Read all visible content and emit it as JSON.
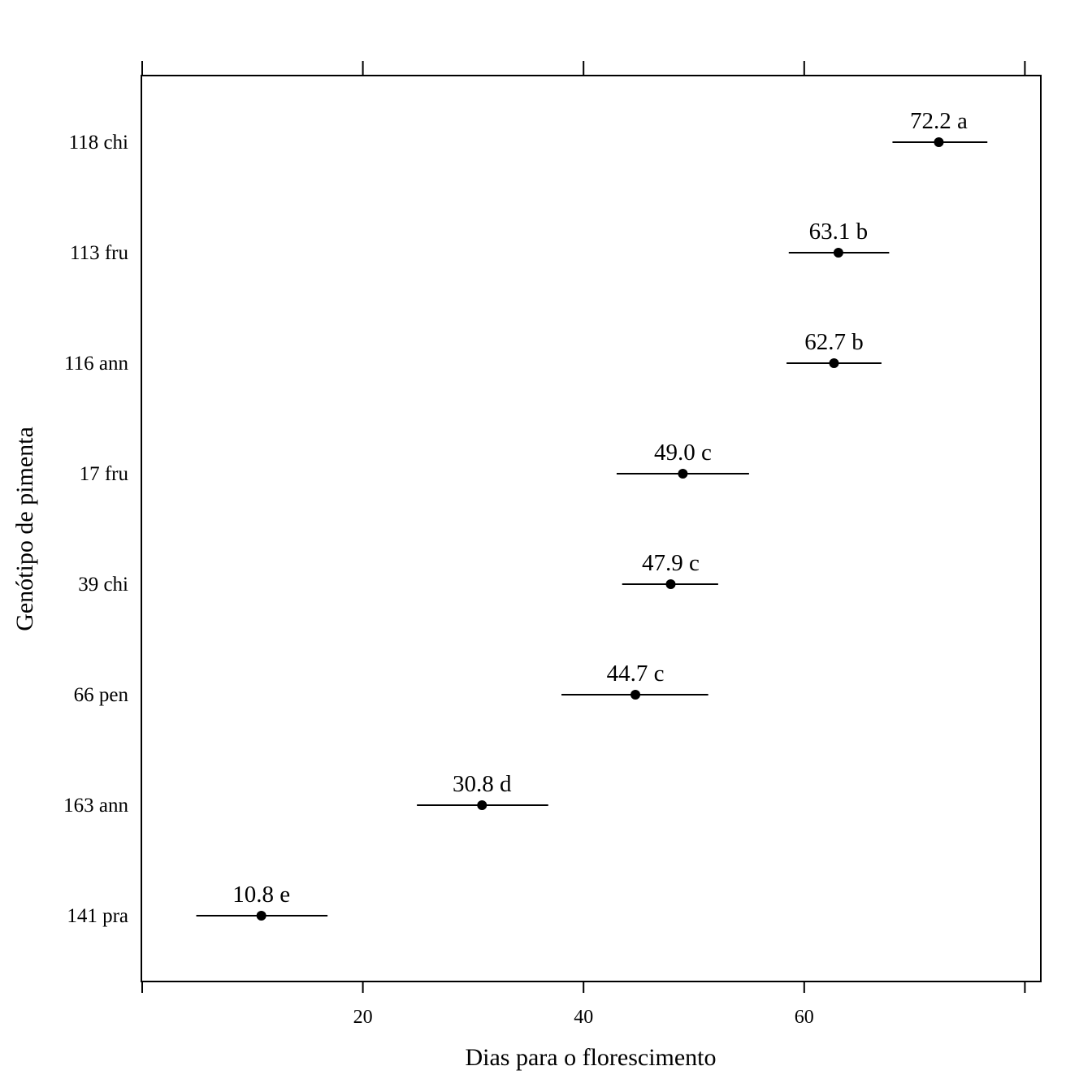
{
  "chart_data": {
    "type": "dotplot-errorbar",
    "xlabel": "Dias para o florescimento",
    "ylabel": "Genótipo de pimenta",
    "xlim": [
      0,
      80
    ],
    "xticks": [
      20,
      40,
      60
    ],
    "xtick_positions": [
      0,
      20,
      40,
      60,
      80
    ],
    "grid": false,
    "categories": [
      "118 chi",
      "113 fru",
      "116 ann",
      "17 fru",
      "39 chi",
      "66 pen",
      "163 ann",
      "141 pra"
    ],
    "values": [
      72.2,
      63.1,
      62.7,
      49.0,
      47.9,
      44.7,
      30.8,
      10.8
    ],
    "ci_lower": [
      68.0,
      58.6,
      58.4,
      43.0,
      43.5,
      38.0,
      24.9,
      4.9
    ],
    "ci_upper": [
      76.6,
      67.7,
      67.0,
      55.0,
      52.2,
      51.3,
      36.8,
      16.8
    ],
    "groups": [
      "a",
      "b",
      "b",
      "c",
      "c",
      "c",
      "d",
      "e"
    ],
    "point_labels": [
      "72.2 a",
      "63.1 b",
      "62.7 b",
      "49.0 c",
      "47.9 c",
      "44.7 c",
      "30.8 d",
      "10.8 e"
    ]
  }
}
